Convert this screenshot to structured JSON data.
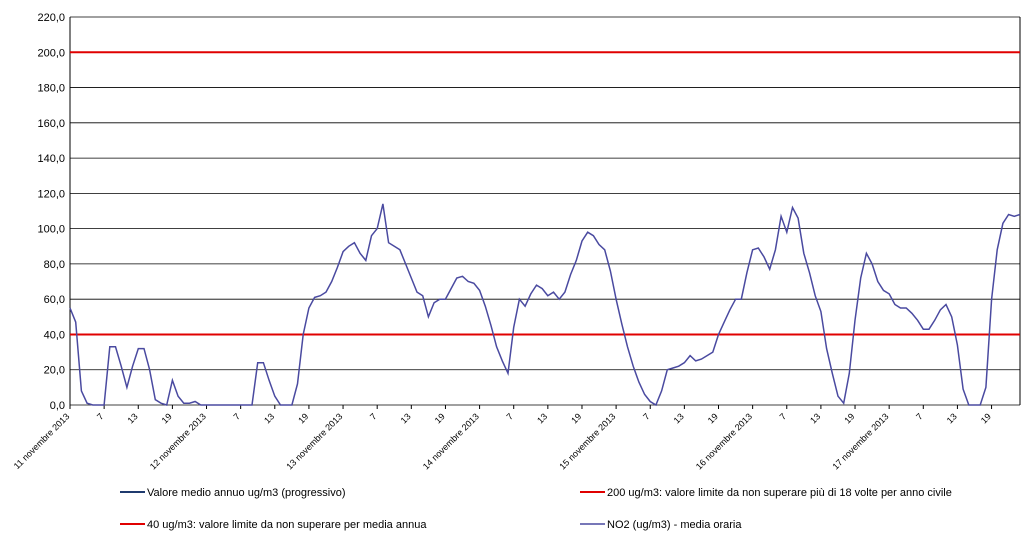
{
  "chart_data": {
    "type": "line",
    "categories": [
      "11 novembre 2013",
      null,
      null,
      null,
      null,
      null,
      "7",
      null,
      null,
      null,
      null,
      null,
      "13",
      null,
      null,
      null,
      null,
      null,
      "19",
      null,
      null,
      null,
      null,
      null,
      "12 novembre 2013",
      null,
      null,
      null,
      null,
      null,
      "7",
      null,
      null,
      null,
      null,
      null,
      "13",
      null,
      null,
      null,
      null,
      null,
      "19",
      null,
      null,
      null,
      null,
      null,
      "13 novembre 2013",
      null,
      null,
      null,
      null,
      null,
      "7",
      null,
      null,
      null,
      null,
      null,
      "13",
      null,
      null,
      null,
      null,
      null,
      "19",
      null,
      null,
      null,
      null,
      null,
      "14 novembre 2013",
      null,
      null,
      null,
      null,
      null,
      "7",
      null,
      null,
      null,
      null,
      null,
      "13",
      null,
      null,
      null,
      null,
      null,
      "19",
      null,
      null,
      null,
      null,
      null,
      "15 novembre 2013",
      null,
      null,
      null,
      null,
      null,
      "7",
      null,
      null,
      null,
      null,
      null,
      "13",
      null,
      null,
      null,
      null,
      null,
      "19",
      null,
      null,
      null,
      null,
      null,
      "16 novembre 2013",
      null,
      null,
      null,
      null,
      null,
      "7",
      null,
      null,
      null,
      null,
      null,
      "13",
      null,
      null,
      null,
      null,
      null,
      "19",
      null,
      null,
      null,
      null,
      null,
      "17 novembre 2013",
      null,
      null,
      null,
      null,
      null,
      "7",
      null,
      null,
      null,
      null,
      null,
      "13",
      null,
      null,
      null,
      null,
      null,
      "19",
      null,
      null,
      null,
      null,
      null
    ],
    "series": [
      {
        "name": "Valore medio annuo ug/m3 (progressivo)",
        "color": "#1f3a6e",
        "width": 2,
        "values": [
          40,
          40,
          40,
          40,
          40,
          40,
          40,
          40,
          40,
          40,
          40,
          40,
          40,
          40,
          40,
          40,
          40,
          40,
          40,
          40,
          40,
          40,
          40,
          40,
          40,
          40,
          40,
          40,
          40,
          40,
          40,
          40,
          40,
          40,
          40,
          40,
          40,
          40,
          40,
          40,
          40,
          40,
          40,
          40,
          40,
          40,
          40,
          40,
          40,
          40,
          40,
          40,
          40,
          40,
          40,
          40,
          40,
          40,
          40,
          40,
          40,
          40,
          40,
          40,
          40,
          40,
          40,
          40,
          40,
          40,
          40,
          40,
          40,
          40,
          40,
          40,
          40,
          40,
          40,
          40,
          40,
          40,
          40,
          40,
          40,
          40,
          40,
          40,
          40,
          40,
          40,
          40,
          40,
          40,
          40,
          40,
          40,
          40,
          40,
          40,
          40,
          40,
          40,
          40,
          40,
          40,
          40,
          40,
          40,
          40,
          40,
          40,
          40,
          40,
          40,
          40,
          40,
          40,
          40,
          40,
          40,
          40,
          40,
          40,
          40,
          40,
          40,
          40,
          40,
          40,
          40,
          40,
          40,
          40,
          40,
          40,
          40,
          40,
          40,
          40,
          40,
          40,
          40,
          40,
          40,
          40,
          40,
          40,
          40,
          40,
          40,
          40,
          40,
          40,
          40,
          40,
          40,
          40,
          40,
          40,
          40,
          40,
          40,
          40,
          40,
          40,
          40,
          40
        ]
      },
      {
        "name": "200 ug/m3: valore limite da non superare più di 18 volte per anno civile",
        "color": "#e00000",
        "width": 2,
        "values": [
          200,
          200,
          200,
          200,
          200,
          200,
          200,
          200,
          200,
          200,
          200,
          200,
          200,
          200,
          200,
          200,
          200,
          200,
          200,
          200,
          200,
          200,
          200,
          200,
          200,
          200,
          200,
          200,
          200,
          200,
          200,
          200,
          200,
          200,
          200,
          200,
          200,
          200,
          200,
          200,
          200,
          200,
          200,
          200,
          200,
          200,
          200,
          200,
          200,
          200,
          200,
          200,
          200,
          200,
          200,
          200,
          200,
          200,
          200,
          200,
          200,
          200,
          200,
          200,
          200,
          200,
          200,
          200,
          200,
          200,
          200,
          200,
          200,
          200,
          200,
          200,
          200,
          200,
          200,
          200,
          200,
          200,
          200,
          200,
          200,
          200,
          200,
          200,
          200,
          200,
          200,
          200,
          200,
          200,
          200,
          200,
          200,
          200,
          200,
          200,
          200,
          200,
          200,
          200,
          200,
          200,
          200,
          200,
          200,
          200,
          200,
          200,
          200,
          200,
          200,
          200,
          200,
          200,
          200,
          200,
          200,
          200,
          200,
          200,
          200,
          200,
          200,
          200,
          200,
          200,
          200,
          200,
          200,
          200,
          200,
          200,
          200,
          200,
          200,
          200,
          200,
          200,
          200,
          200,
          200,
          200,
          200,
          200,
          200,
          200,
          200,
          200,
          200,
          200,
          200,
          200,
          200,
          200,
          200,
          200,
          200,
          200,
          200,
          200,
          200,
          200,
          200,
          200
        ]
      },
      {
        "name": "40 ug/m3: valore limite da non superare per media annua",
        "color": "#e00000",
        "width": 2,
        "values": [
          40,
          40,
          40,
          40,
          40,
          40,
          40,
          40,
          40,
          40,
          40,
          40,
          40,
          40,
          40,
          40,
          40,
          40,
          40,
          40,
          40,
          40,
          40,
          40,
          40,
          40,
          40,
          40,
          40,
          40,
          40,
          40,
          40,
          40,
          40,
          40,
          40,
          40,
          40,
          40,
          40,
          40,
          40,
          40,
          40,
          40,
          40,
          40,
          40,
          40,
          40,
          40,
          40,
          40,
          40,
          40,
          40,
          40,
          40,
          40,
          40,
          40,
          40,
          40,
          40,
          40,
          40,
          40,
          40,
          40,
          40,
          40,
          40,
          40,
          40,
          40,
          40,
          40,
          40,
          40,
          40,
          40,
          40,
          40,
          40,
          40,
          40,
          40,
          40,
          40,
          40,
          40,
          40,
          40,
          40,
          40,
          40,
          40,
          40,
          40,
          40,
          40,
          40,
          40,
          40,
          40,
          40,
          40,
          40,
          40,
          40,
          40,
          40,
          40,
          40,
          40,
          40,
          40,
          40,
          40,
          40,
          40,
          40,
          40,
          40,
          40,
          40,
          40,
          40,
          40,
          40,
          40,
          40,
          40,
          40,
          40,
          40,
          40,
          40,
          40,
          40,
          40,
          40,
          40,
          40,
          40,
          40,
          40,
          40,
          40,
          40,
          40,
          40,
          40,
          40,
          40,
          40,
          40,
          40,
          40,
          40,
          40,
          40,
          40,
          40,
          40,
          40,
          40
        ]
      },
      {
        "name": "NO2 (ug/m3)  - media oraria",
        "color": "#4a4aa0",
        "width": 1.5,
        "values": [
          55,
          47,
          8,
          1,
          0,
          0,
          0,
          33,
          33,
          22,
          10,
          22,
          32,
          32,
          20,
          3,
          1,
          0,
          14,
          5,
          1,
          1,
          2,
          0,
          0,
          0,
          0,
          0,
          0,
          0,
          0,
          0,
          0,
          24,
          24,
          14,
          5,
          0,
          0,
          0,
          12,
          40,
          55,
          61,
          62,
          64,
          70,
          78,
          87,
          90,
          92,
          86,
          82,
          96,
          100,
          114,
          92,
          90,
          88,
          80,
          72,
          64,
          62,
          50,
          58,
          60,
          60,
          66,
          72,
          73,
          70,
          69,
          65,
          56,
          45,
          33,
          25,
          18,
          44,
          60,
          56,
          63,
          68,
          66,
          62,
          64,
          60,
          64,
          74,
          82,
          93,
          98,
          96,
          91,
          88,
          76,
          60,
          46,
          33,
          22,
          13,
          6,
          2,
          0,
          8,
          20,
          21,
          22,
          24,
          28,
          25,
          26,
          28,
          30,
          40,
          47,
          54,
          60,
          60,
          75,
          88,
          89,
          84,
          77,
          88,
          107,
          98,
          112,
          106,
          86,
          75,
          62,
          53,
          32,
          18,
          5,
          1,
          18,
          48,
          72,
          86,
          80,
          70,
          65,
          63,
          57,
          55,
          55,
          52,
          48,
          43,
          43,
          48,
          54,
          57,
          50,
          34,
          9,
          0,
          0,
          0,
          10,
          60,
          88,
          103,
          108,
          107,
          108
        ]
      }
    ],
    "ylim": [
      0,
      220
    ],
    "yticks": [
      {
        "value": 0,
        "label": "0,0"
      },
      {
        "value": 20,
        "label": "20,0"
      },
      {
        "value": 40,
        "label": "40,0"
      },
      {
        "value": 60,
        "label": "60,0"
      },
      {
        "value": 80,
        "label": "80,0"
      },
      {
        "value": 100,
        "label": "100,0"
      },
      {
        "value": 120,
        "label": "120,0"
      },
      {
        "value": 140,
        "label": "140,0"
      },
      {
        "value": 160,
        "label": "160,0"
      },
      {
        "value": 180,
        "label": "180,0"
      },
      {
        "value": 200,
        "label": "200,0"
      },
      {
        "value": 220,
        "label": "220,0"
      }
    ],
    "grid": true
  }
}
